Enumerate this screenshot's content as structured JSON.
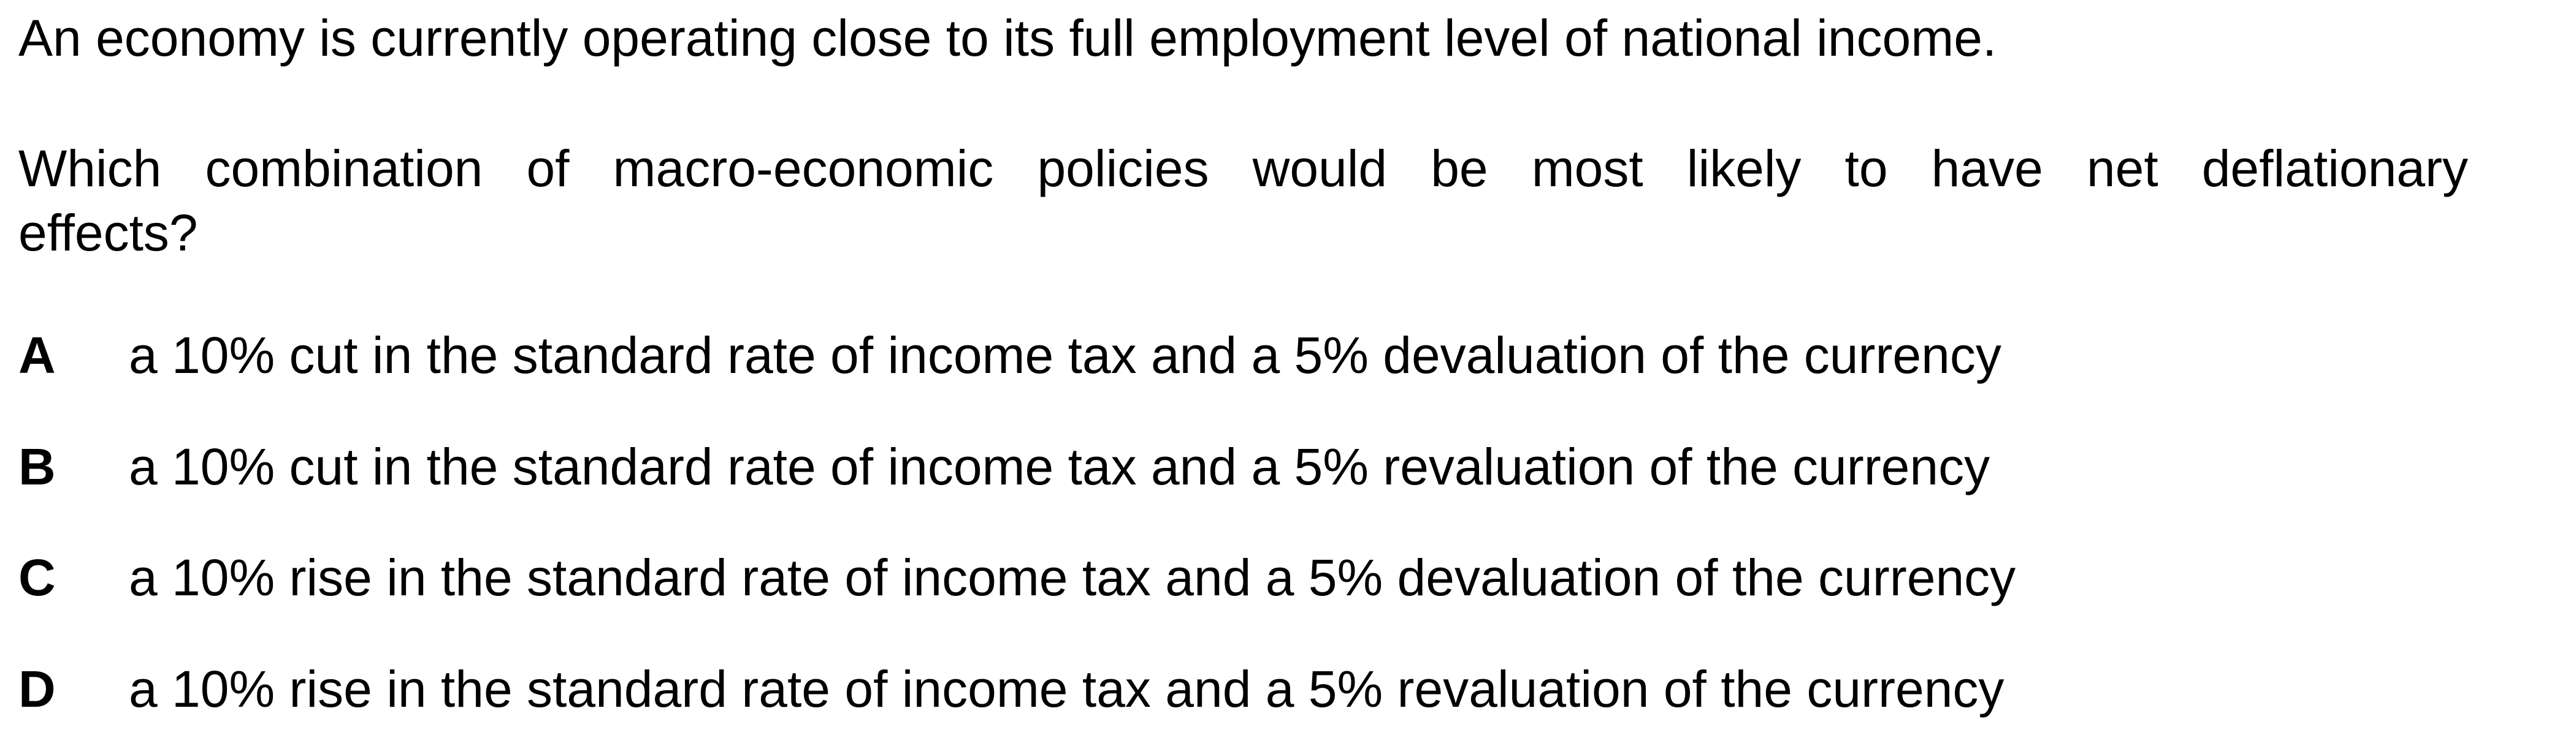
{
  "question": {
    "intro": "An economy is currently operating close to its full employment level of national income.",
    "prompt_line1": "Which combination of macro-economic policies would be most likely to have net deflationary",
    "prompt_line2": "effects?"
  },
  "options": [
    {
      "letter": "A",
      "text": "a 10% cut in the standard rate of income tax and a 5% devaluation of the currency"
    },
    {
      "letter": "B",
      "text": "a 10% cut in the standard rate of income tax and a 5% revaluation of the currency"
    },
    {
      "letter": "C",
      "text": "a 10% rise in the standard rate of income tax and a 5% devaluation of the currency"
    },
    {
      "letter": "D",
      "text": "a 10% rise in the standard rate of income tax and a 5% revaluation of the currency"
    }
  ]
}
